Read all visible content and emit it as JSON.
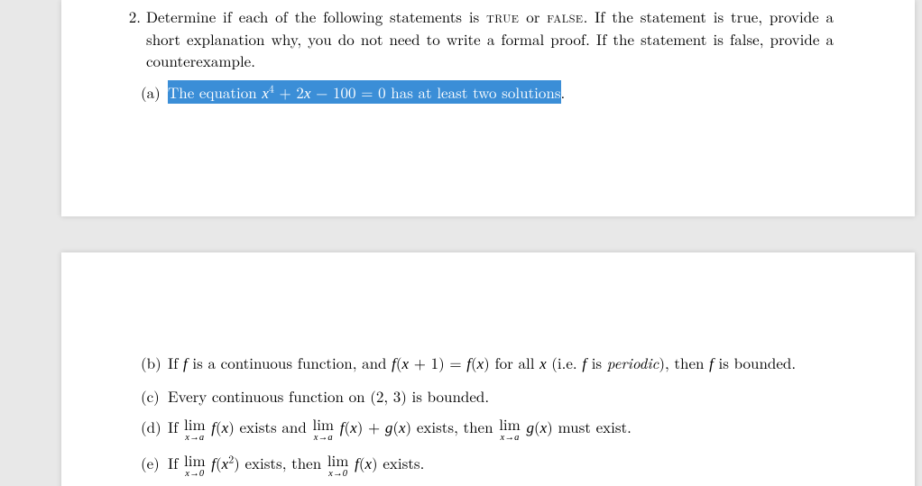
{
  "question": {
    "number": "2.",
    "prompt_pre": "Determine if each of the following statements is ",
    "true_sc": "true",
    "or_text": " or ",
    "false_sc": "false",
    "prompt_post": ". If the statement is true, provide a short explanation why, you do not need to write a formal proof. If the statement is false, provide a counterexample."
  },
  "parts": {
    "a": {
      "label": "(a)",
      "highlight_pre": "The equation ",
      "eq1": "x",
      "eq1sup": "4",
      "eq2": " + 2",
      "eq3": "x",
      "eq4": " − 100 = 0 has at least two solutions",
      "tail": "."
    },
    "b": {
      "label": "(b)",
      "t1": "If ",
      "f": "f",
      "t2": " is a continuous function, and ",
      "lhs1": "f",
      "lhs2": "(",
      "lhs3": "x",
      "lhs4": " + 1) = ",
      "rhs1": "f",
      "rhs2": "(",
      "rhs3": "x",
      "rhs4": ") for all ",
      "xvar": "x",
      "t3": " (i.e. ",
      "f2": "f",
      "t4": " is ",
      "periodic": "periodic",
      "t5": "), then ",
      "f3": "f",
      "t6": " is bounded."
    },
    "c": {
      "label": "(c)",
      "text": "Every continuous function on (2, 3) is bounded."
    },
    "d": {
      "label": "(d)",
      "t1": "If ",
      "t2": " exists and ",
      "t3": " exists, then ",
      "t4": " must exist."
    },
    "e": {
      "label": "(e)",
      "t1": "If ",
      "t2": " exists, then ",
      "t3": " exists."
    }
  },
  "lim": {
    "word": "lim",
    "xa": "x→a",
    "x0": "x→0"
  },
  "style": {
    "highlight_bg": "#3b8ed7",
    "page_bg": "#ffffff",
    "viewport_bg": "#e8e8e8"
  }
}
